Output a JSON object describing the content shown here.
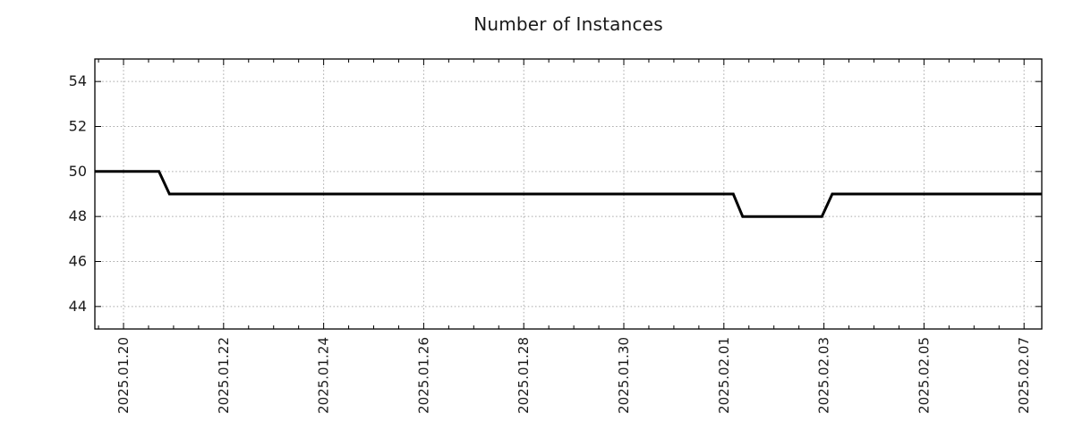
{
  "chart_data": {
    "type": "line",
    "title": "Number of Instances",
    "xlabel": "",
    "ylabel": "",
    "background_color": "#ffffff",
    "text_color": "#1a1a1a",
    "border_color": "#000000",
    "grid": {
      "visible": true,
      "color": "#a8a8a8",
      "style": "dotted"
    },
    "legend": {
      "visible": false
    },
    "ylim": [
      43,
      55
    ],
    "y_ticks": [
      44,
      46,
      48,
      50,
      52,
      54
    ],
    "xlim": [
      "2025-01-19T10:15",
      "2025-02-07T08:30"
    ],
    "x_major_ticks": [
      {
        "t": "2025-01-20T00:00",
        "label": "2025.01.20"
      },
      {
        "t": "2025-01-22T00:00",
        "label": "2025.01.22"
      },
      {
        "t": "2025-01-24T00:00",
        "label": "2025.01.24"
      },
      {
        "t": "2025-01-26T00:00",
        "label": "2025.01.26"
      },
      {
        "t": "2025-01-28T00:00",
        "label": "2025.01.28"
      },
      {
        "t": "2025-01-30T00:00",
        "label": "2025.01.30"
      },
      {
        "t": "2025-02-01T00:00",
        "label": "2025.02.01"
      },
      {
        "t": "2025-02-03T00:00",
        "label": "2025.02.03"
      },
      {
        "t": "2025-02-05T00:00",
        "label": "2025.02.05"
      },
      {
        "t": "2025-02-07T00:00",
        "label": "2025.02.07"
      }
    ],
    "x_minor_interval_hours": 12,
    "series": [
      {
        "name": "instances",
        "color": "#000000",
        "line_width": 3,
        "points": [
          {
            "t": "2025-01-19T10:15",
            "v": 50
          },
          {
            "t": "2025-01-20T17:00",
            "v": 50
          },
          {
            "t": "2025-01-20T22:00",
            "v": 49
          },
          {
            "t": "2025-02-01T04:30",
            "v": 49
          },
          {
            "t": "2025-02-01T09:00",
            "v": 48
          },
          {
            "t": "2025-02-02T23:00",
            "v": 48
          },
          {
            "t": "2025-02-03T04:00",
            "v": 49
          },
          {
            "t": "2025-02-07T08:30",
            "v": 49
          }
        ]
      }
    ]
  }
}
